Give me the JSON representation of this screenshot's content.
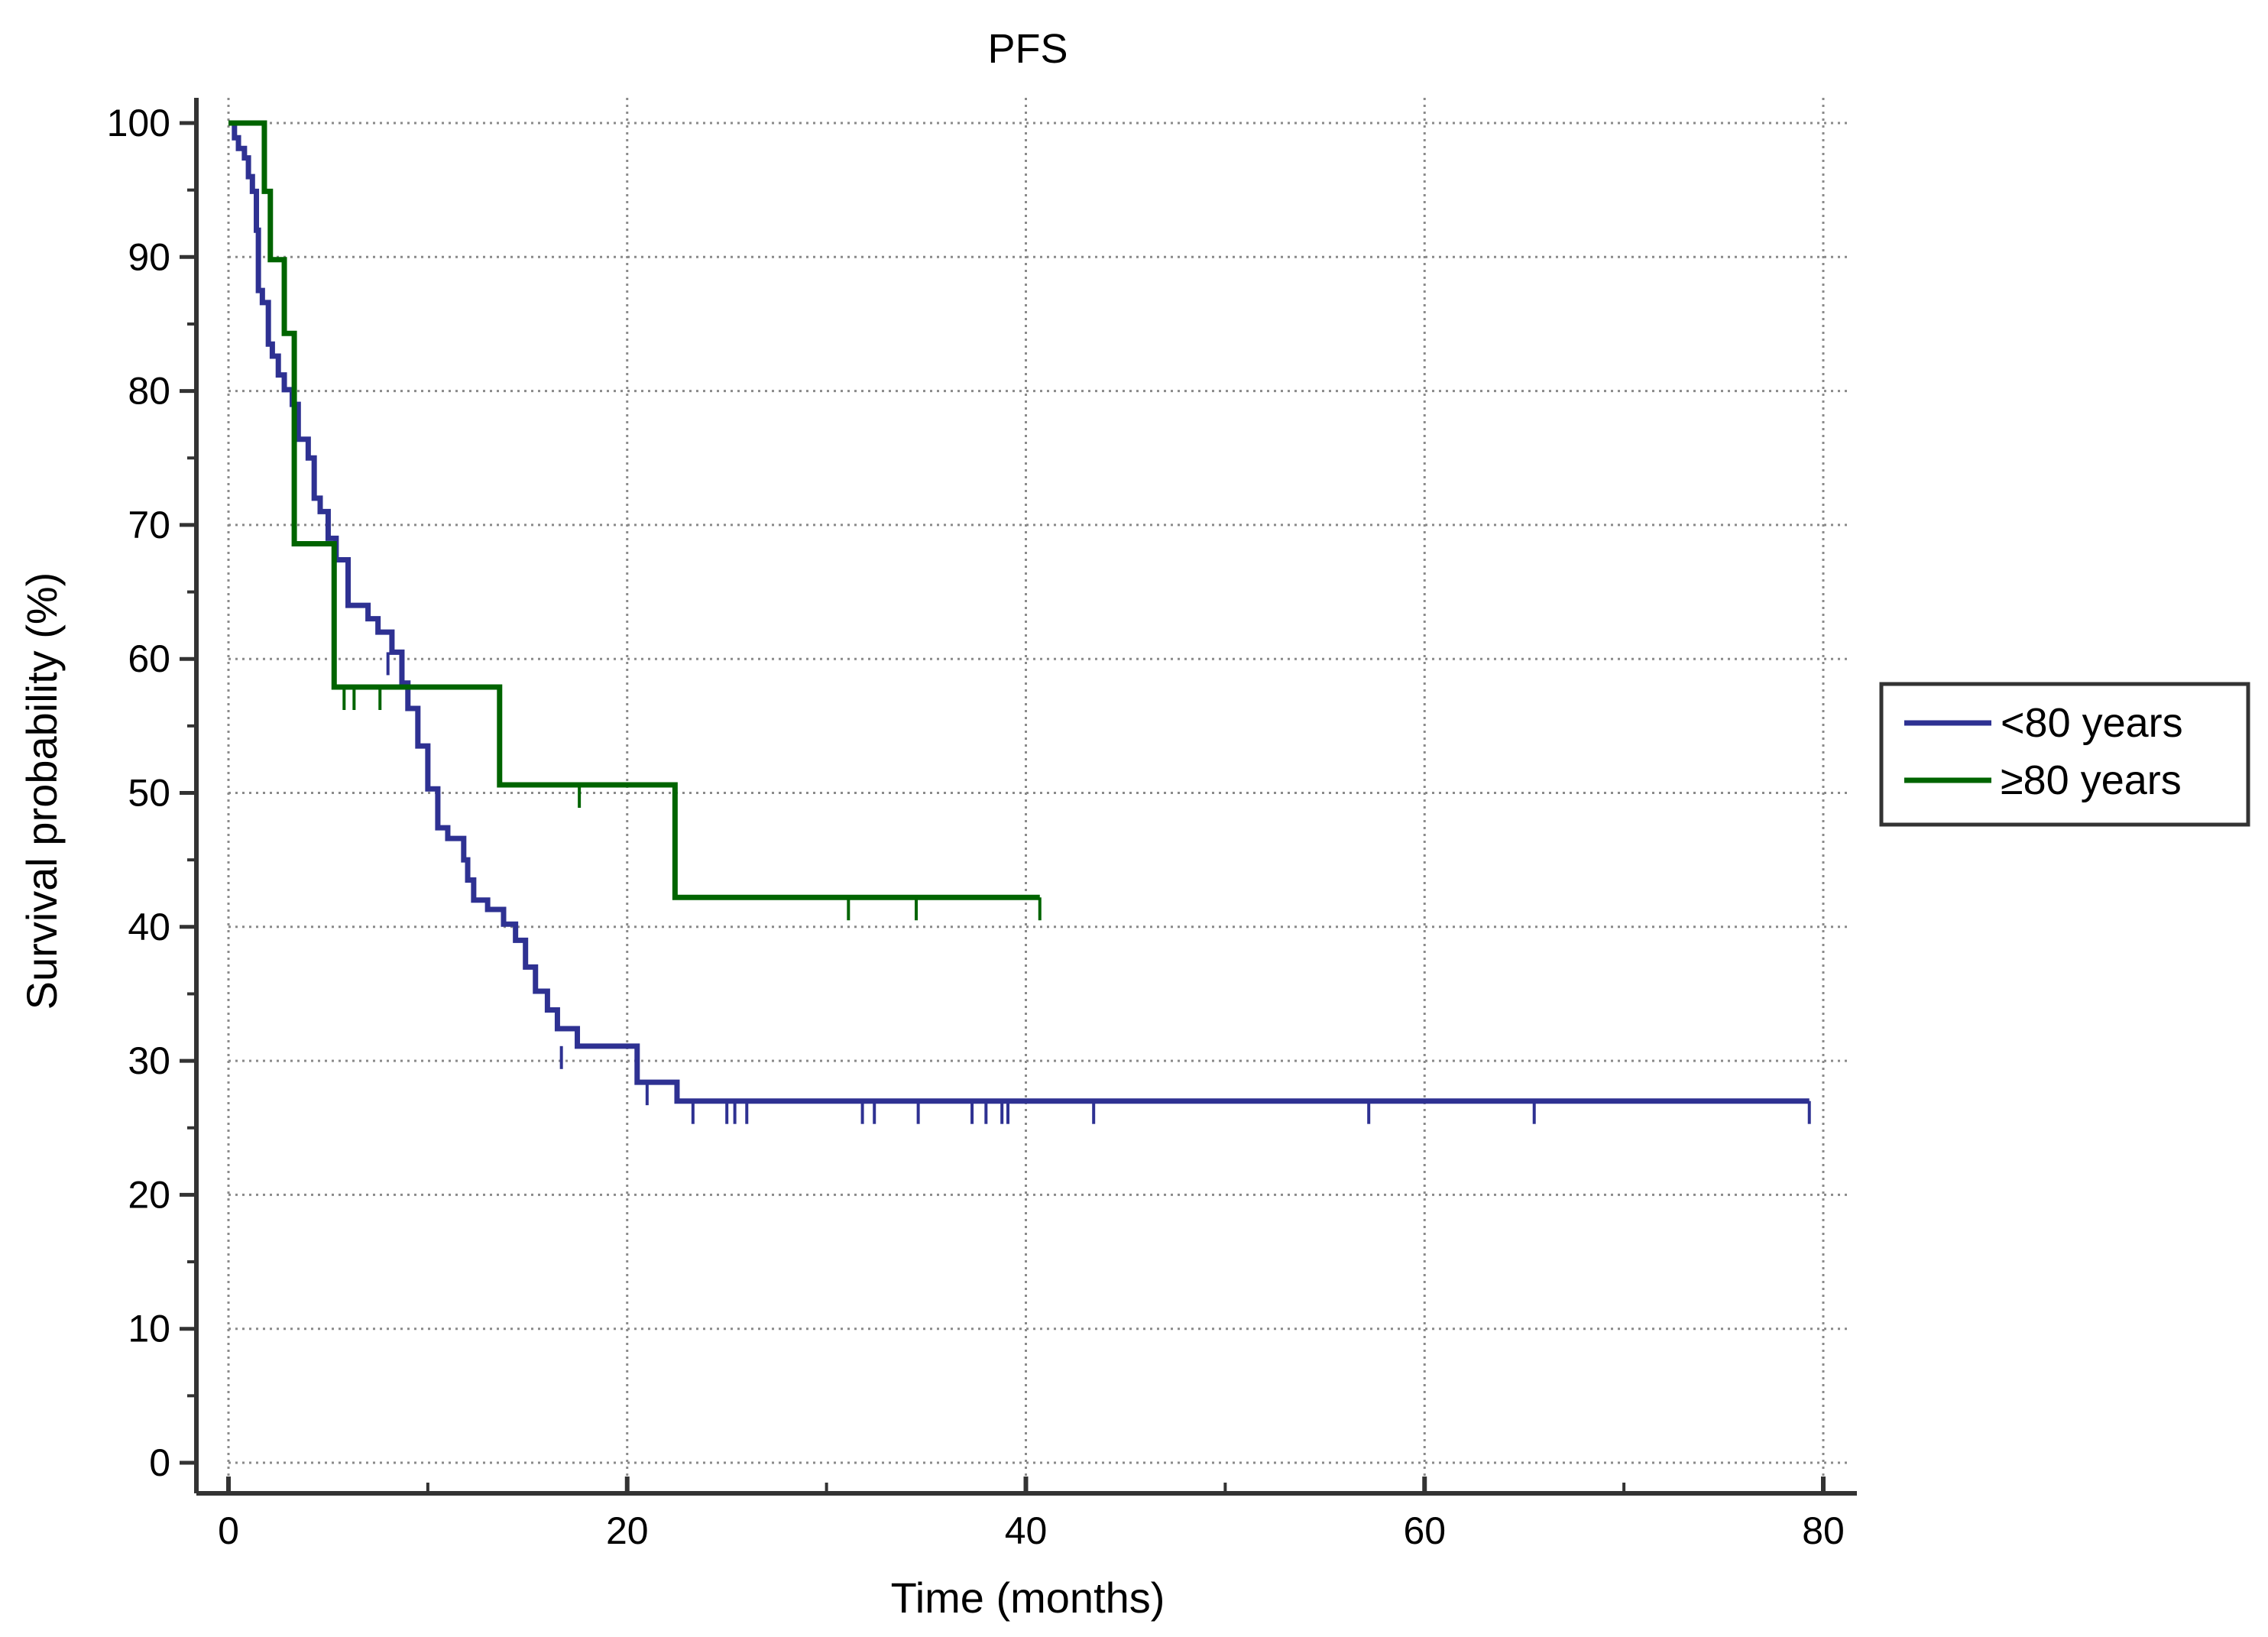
{
  "chart_data": {
    "type": "line",
    "subtype": "kaplan-meier step plot",
    "title": "PFS",
    "xlabel": "Time (months)",
    "ylabel": "Survival probability (%)",
    "xlim": [
      0,
      80
    ],
    "ylim": [
      0,
      100
    ],
    "x_major_ticks": [
      0,
      20,
      40,
      60,
      80
    ],
    "x_tick_labels": [
      "0",
      "20",
      "40",
      "60",
      "80"
    ],
    "x_minor_step": 10,
    "y_major_ticks": [
      0,
      10,
      20,
      30,
      40,
      50,
      60,
      70,
      80,
      90,
      100
    ],
    "y_tick_labels": [
      "0",
      "10",
      "20",
      "30",
      "40",
      "50",
      "60",
      "70",
      "80",
      "90",
      "100"
    ],
    "y_minor_step": 5,
    "grid": true,
    "grid_style": "dotted",
    "legend_position": "right",
    "series": [
      {
        "name": "<80 years",
        "color": "#2e3192",
        "steps": [
          [
            0,
            100
          ],
          [
            0.3,
            98.9
          ],
          [
            0.5,
            98.1
          ],
          [
            0.8,
            97.4
          ],
          [
            1.0,
            96.0
          ],
          [
            1.2,
            94.9
          ],
          [
            1.4,
            92.0
          ],
          [
            1.5,
            87.5
          ],
          [
            1.7,
            86.6
          ],
          [
            2.0,
            83.5
          ],
          [
            2.2,
            82.6
          ],
          [
            2.5,
            81.2
          ],
          [
            2.8,
            80.1
          ],
          [
            3.2,
            79.0
          ],
          [
            3.5,
            76.4
          ],
          [
            4.0,
            75.0
          ],
          [
            4.3,
            72.0
          ],
          [
            4.6,
            71.0
          ],
          [
            5.0,
            69.0
          ],
          [
            5.4,
            67.4
          ],
          [
            6.0,
            64.0
          ],
          [
            6.5,
            64.0
          ],
          [
            7.0,
            63.0
          ],
          [
            7.5,
            62.0
          ],
          [
            8.2,
            60.5
          ],
          [
            8.7,
            58.2
          ],
          [
            9.0,
            56.3
          ],
          [
            9.5,
            53.5
          ],
          [
            10.0,
            50.3
          ],
          [
            10.5,
            47.4
          ],
          [
            11.0,
            46.6
          ],
          [
            11.8,
            45.0
          ],
          [
            12.0,
            43.5
          ],
          [
            12.3,
            42.0
          ],
          [
            13.0,
            41.3
          ],
          [
            13.8,
            40.2
          ],
          [
            14.4,
            39.0
          ],
          [
            14.9,
            37.0
          ],
          [
            15.4,
            35.2
          ],
          [
            16.0,
            33.8
          ],
          [
            16.5,
            32.4
          ],
          [
            17.5,
            31.1
          ],
          [
            20.5,
            28.4
          ],
          [
            22.5,
            27.0
          ],
          [
            79.3,
            27.0
          ]
        ],
        "censored": [
          [
            8.0,
            60.5
          ],
          [
            16.7,
            31.1
          ],
          [
            21.0,
            28.4
          ],
          [
            23.3,
            27.0
          ],
          [
            25.0,
            27.0
          ],
          [
            25.4,
            27.0
          ],
          [
            26.0,
            27.0
          ],
          [
            31.8,
            27.0
          ],
          [
            32.4,
            27.0
          ],
          [
            34.6,
            27.0
          ],
          [
            37.3,
            27.0
          ],
          [
            38.0,
            27.0
          ],
          [
            38.8,
            27.0
          ],
          [
            39.1,
            27.0
          ],
          [
            43.4,
            27.0
          ],
          [
            57.2,
            27.0
          ],
          [
            65.5,
            27.0
          ],
          [
            79.3,
            27.0
          ]
        ]
      },
      {
        "name": "≥80 years",
        "color": "#006400",
        "steps": [
          [
            0,
            100
          ],
          [
            1.8,
            94.9
          ],
          [
            2.1,
            89.8
          ],
          [
            2.8,
            84.3
          ],
          [
            3.3,
            68.6
          ],
          [
            5.3,
            57.9
          ],
          [
            13.6,
            50.6
          ],
          [
            22.4,
            42.2
          ],
          [
            40.7,
            42.2
          ]
        ],
        "censored": [
          [
            5.8,
            57.9
          ],
          [
            6.3,
            57.9
          ],
          [
            7.6,
            57.9
          ],
          [
            17.6,
            50.6
          ],
          [
            31.1,
            42.2
          ],
          [
            34.5,
            42.2
          ],
          [
            40.7,
            42.2
          ]
        ]
      }
    ]
  }
}
